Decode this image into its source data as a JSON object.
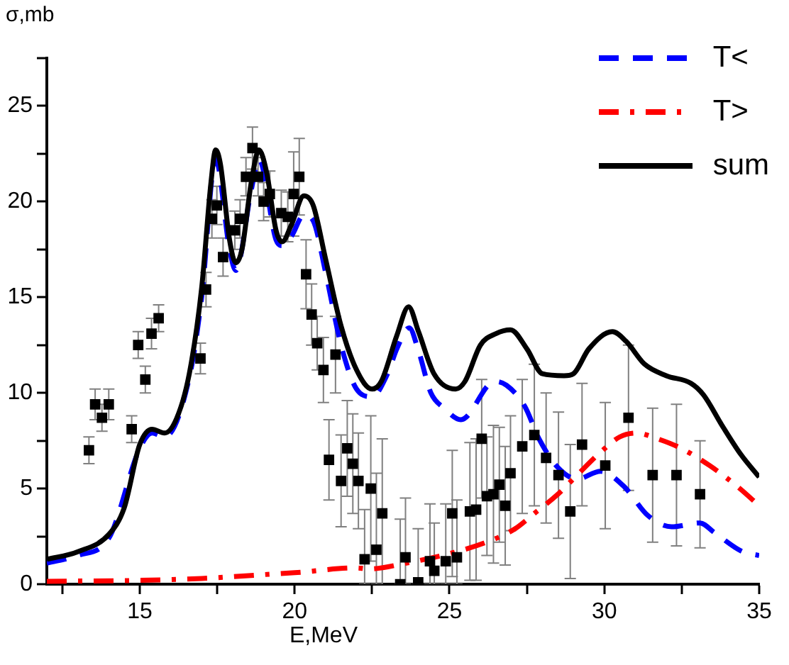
{
  "chart_data": {
    "type": "line",
    "xlabel": "E,MeV",
    "ylabel": "σ,mb",
    "xlim": [
      12,
      35
    ],
    "ylim": [
      0,
      27.5
    ],
    "xticks": [
      {
        "value": 12.5,
        "label": null
      },
      15,
      {
        "value": 17.5,
        "label": null
      },
      20,
      {
        "value": 22.5,
        "label": null
      },
      25,
      {
        "value": 27.5,
        "label": null
      },
      30,
      {
        "value": 32.5,
        "label": null
      },
      35
    ],
    "yticks": [
      0,
      {
        "value": 2.5,
        "label": null
      },
      5,
      {
        "value": 7.5,
        "label": null
      },
      10,
      {
        "value": 12.5,
        "label": null
      },
      15,
      {
        "value": 17.5,
        "label": null
      },
      20,
      {
        "value": 22.5,
        "label": null
      },
      25,
      {
        "value": 27.5,
        "label": null
      }
    ],
    "grid": false,
    "legend": "top right",
    "marker": "none",
    "series": [
      {
        "name": "T<",
        "type": "line",
        "color": "#0000ff",
        "line_style": "dashed",
        "x": [
          12,
          13,
          14,
          15,
          15.4,
          15.8,
          16.6,
          17,
          17.45,
          17.9,
          18.1,
          18.6,
          18.85,
          19.4,
          19.6,
          19.9,
          20.3,
          20.6,
          21,
          21.5,
          22,
          22.5,
          23,
          23.3,
          23.7,
          24,
          24.4,
          24.83,
          25.37,
          26.46,
          26.84,
          27.43,
          27.89,
          28.5,
          29.12,
          29.88,
          30.64,
          31.4,
          32.17,
          33.09,
          33.55,
          34.46,
          35
        ],
        "values": [
          1.1,
          1.5,
          2.4,
          7.1,
          7.9,
          7.7,
          10.8,
          15,
          22.2,
          17.5,
          16.4,
          20.6,
          22.2,
          18,
          17.7,
          18.2,
          19.3,
          19,
          16.3,
          12.5,
          10.2,
          9.8,
          11,
          12.3,
          13.4,
          12.2,
          10,
          9.2,
          8.6,
          10.6,
          10.4,
          9.3,
          7.6,
          6.1,
          5.5,
          5.9,
          5.1,
          3.6,
          3,
          3.2,
          2.7,
          1.7,
          1.5
        ]
      },
      {
        "name": "T>",
        "type": "line",
        "color": "#ff0000",
        "line_style": "dashdot",
        "x": [
          12,
          15,
          17,
          19,
          20,
          22,
          22.4,
          23.6,
          25,
          26.2,
          27.12,
          27.74,
          28.5,
          29.12,
          29.88,
          30.5,
          31.03,
          31.72,
          32.48,
          33.4,
          34.3,
          35
        ],
        "values": [
          0.15,
          0.2,
          0.3,
          0.5,
          0.6,
          0.85,
          0.8,
          1.1,
          1.6,
          2.2,
          2.9,
          3.7,
          4.7,
          5.7,
          6.9,
          7.7,
          7.9,
          7.6,
          7.1,
          6.2,
          5.1,
          4.1
        ]
      },
      {
        "name": "sum",
        "type": "line",
        "color": "#000000",
        "line_style": "solid",
        "x": [
          12,
          13,
          14,
          14.5,
          15,
          15.4,
          15.8,
          16.2,
          16.6,
          17,
          17.3,
          17.45,
          17.6,
          17.9,
          18.1,
          18.3,
          18.6,
          18.85,
          19.1,
          19.4,
          19.6,
          19.9,
          20.3,
          20.6,
          21,
          21.5,
          22,
          22.5,
          22.8,
          23.3,
          23.68,
          24,
          24.5,
          25.2,
          25.5,
          26,
          26.5,
          26.97,
          27.5,
          28,
          28.7,
          29,
          29.5,
          30.26,
          30.7,
          31.3,
          32,
          32.8,
          33.2,
          33.8,
          34.4,
          35
        ],
        "values": [
          1.3,
          1.7,
          2.6,
          4,
          7.3,
          8.1,
          7.9,
          8.7,
          11,
          15.5,
          21,
          22.7,
          22,
          18,
          16.8,
          17.5,
          21,
          22.7,
          21.5,
          18.5,
          17.9,
          18.8,
          20.3,
          19.8,
          17,
          13.5,
          11.2,
          10.2,
          10.6,
          13,
          14.5,
          13.2,
          11,
          10.2,
          10.6,
          12.5,
          13.1,
          13.3,
          12.3,
          11,
          10.9,
          11,
          12.3,
          13.2,
          12.7,
          11.5,
          10.9,
          10.5,
          9.9,
          8.3,
          6.8,
          5.6
        ]
      },
      {
        "type": "scatter",
        "color": "#000000",
        "marker": "square",
        "x": [
          13.36,
          13.56,
          13.78,
          14,
          14.74,
          14.95,
          15.18,
          15.38,
          15.61,
          16.96,
          17.14,
          17.33,
          17.49,
          17.69,
          18.07,
          18.24,
          18.43,
          18.64,
          18.82,
          19,
          19.2,
          19.57,
          19.78,
          19.97,
          20.15,
          20.37,
          20.55,
          20.73,
          20.93,
          21.11,
          21.32,
          21.5,
          21.7,
          21.88,
          22.06,
          22.26,
          22.46,
          22.64,
          22.83,
          23.41,
          23.58,
          23.99,
          24.37,
          24.51,
          24.88,
          25.09,
          25.24,
          25.66,
          25.86,
          26.04,
          26.21,
          26.42,
          26.61,
          26.8,
          26.97,
          27.35,
          27.74,
          28.12,
          28.52,
          28.9,
          29.28,
          30.03,
          30.78,
          31.56,
          32.33,
          33.09
        ],
        "values": [
          7,
          9.4,
          8.7,
          9.4,
          8.1,
          12.5,
          10.7,
          13.1,
          13.9,
          11.8,
          15.4,
          19.1,
          19.8,
          17.1,
          18.5,
          19.1,
          21.3,
          22.8,
          21.3,
          20,
          20.4,
          19.4,
          19.2,
          20.4,
          21.3,
          16.2,
          14.1,
          12.6,
          11.2,
          6.5,
          12,
          5.4,
          7.1,
          6.3,
          5.4,
          1.3,
          5,
          1.8,
          3.7,
          0,
          1.4,
          0.1,
          1.2,
          0.7,
          1.2,
          3.7,
          1.4,
          3.8,
          3.9,
          7.6,
          4.6,
          4.7,
          5.2,
          4.1,
          5.8,
          7.2,
          7.8,
          6.6,
          5.7,
          3.8,
          7.3,
          6.2,
          8.7,
          5.7,
          5.7,
          4.7
        ],
        "errors": [
          0.7,
          0.8,
          0.7,
          0.8,
          0.7,
          0.7,
          0.7,
          0.8,
          0.7,
          0.8,
          0.9,
          1,
          1,
          1,
          1,
          1,
          1,
          1.1,
          1,
          1,
          1.2,
          1.2,
          1.3,
          2.2,
          2,
          1.8,
          1.6,
          1.4,
          1.7,
          2.1,
          2,
          2.4,
          2.5,
          2.6,
          2.5,
          [
            0,
            3.9
          ],
          3.8,
          [
            0,
            5.8
          ],
          3.9,
          [
            0,
            3.4
          ],
          [
            0,
            4.5
          ],
          [
            0,
            2.9
          ],
          [
            0,
            4.2
          ],
          [
            0,
            3.2
          ],
          [
            0,
            4.2
          ],
          3.3,
          [
            0,
            4.4
          ],
          3.6,
          3.7,
          3.1,
          3.1,
          3.6,
          3,
          3.1,
          3,
          3.5,
          3.7,
          3.4,
          3.3,
          3.5,
          3.2,
          3.3,
          3.8,
          3.5,
          3.7,
          2.8
        ]
      }
    ]
  }
}
